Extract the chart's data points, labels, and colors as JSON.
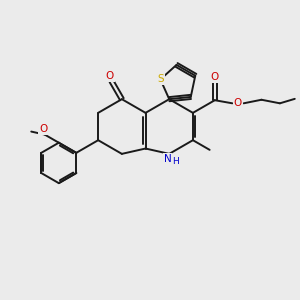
{
  "background_color": "#ebebeb",
  "fig_size": [
    3.0,
    3.0
  ],
  "dpi": 100,
  "bond_color": "#1a1a1a",
  "bond_lw": 1.4,
  "atom_colors": {
    "O": "#cc0000",
    "N": "#0000cc",
    "S": "#ccaa00",
    "C": "#1a1a1a"
  },
  "font_size": 7.5
}
